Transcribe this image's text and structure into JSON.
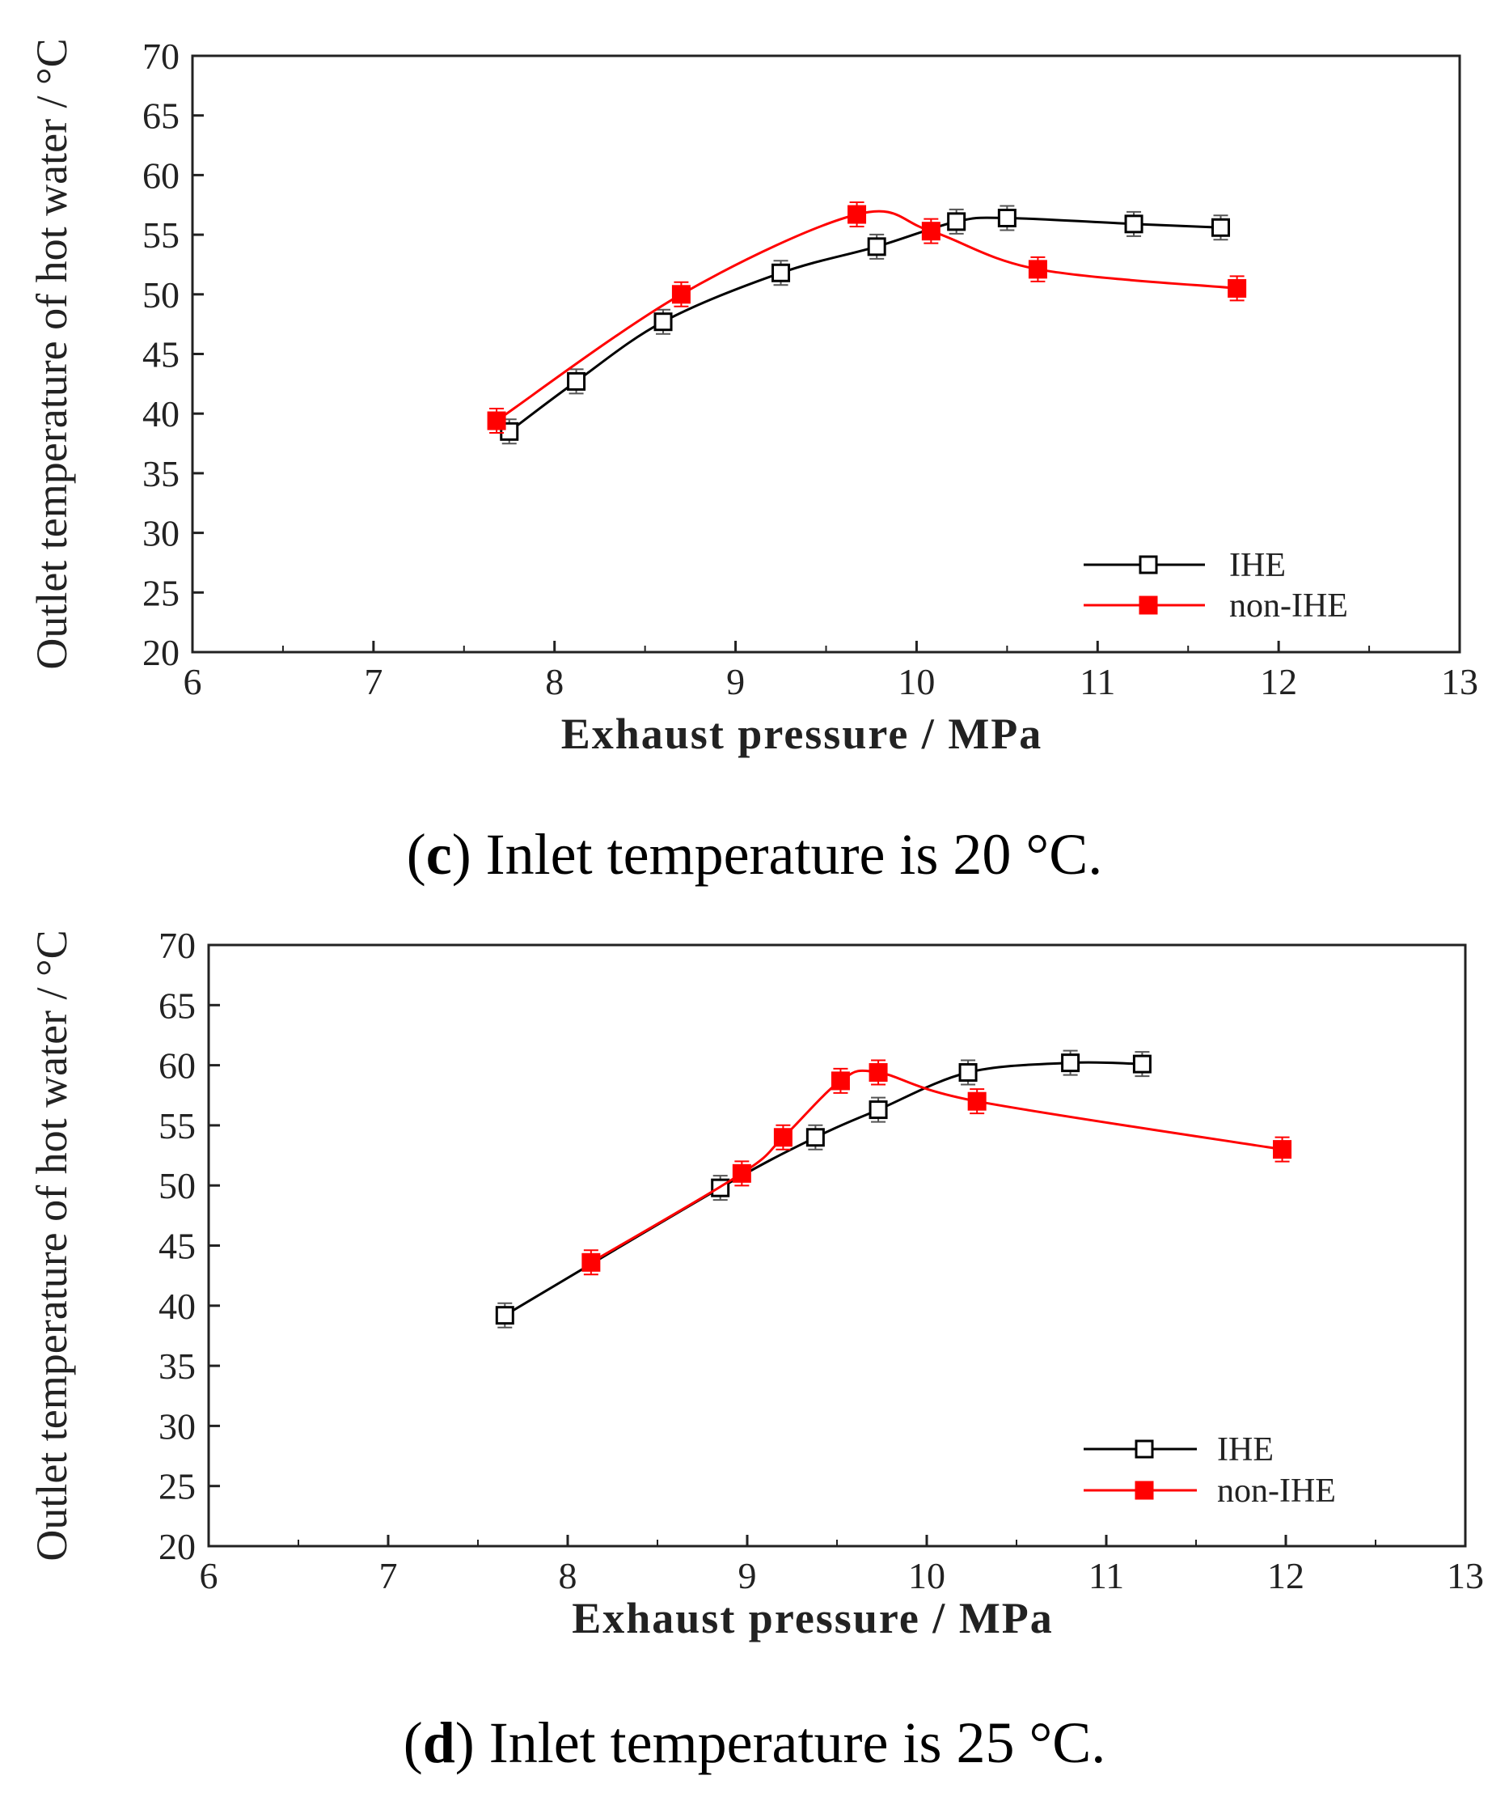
{
  "chart_data": [
    {
      "type": "line",
      "panel": "c",
      "caption": {
        "open": "(",
        "letter": "c",
        "text": ") Inlet temperature is 20 °C."
      },
      "xlabel": "Exhaust pressure / MPa",
      "ylabel": "Outlet temperature of hot water / °C",
      "xlim": [
        6,
        13
      ],
      "ylim": [
        20,
        70
      ],
      "xticks": [
        "6",
        "7",
        "8",
        "9",
        "10",
        "11",
        "12",
        "13"
      ],
      "yticks": [
        "20",
        "25",
        "30",
        "35",
        "40",
        "45",
        "50",
        "55",
        "60",
        "65",
        "70"
      ],
      "legend_position": "bottom-right",
      "series": [
        {
          "name": "IHE",
          "color": "#000000",
          "marker": "open-square",
          "points": [
            [
              7.75,
              38.5
            ],
            [
              8.12,
              42.7
            ],
            [
              8.6,
              47.7
            ],
            [
              9.25,
              51.8
            ],
            [
              9.78,
              54.0
            ],
            [
              10.22,
              56.1
            ],
            [
              10.5,
              56.4
            ],
            [
              11.2,
              55.9
            ],
            [
              11.68,
              55.6
            ]
          ]
        },
        {
          "name": "non-IHE",
          "color": "#ff0000",
          "marker": "filled-square",
          "points": [
            [
              7.68,
              39.4
            ],
            [
              8.7,
              50.0
            ],
            [
              9.67,
              56.7
            ],
            [
              10.08,
              55.3
            ],
            [
              10.67,
              52.1
            ],
            [
              11.77,
              50.5
            ]
          ]
        }
      ]
    },
    {
      "type": "line",
      "panel": "d",
      "caption": {
        "open": "(",
        "letter": "d",
        "text": ") Inlet temperature is 25 °C."
      },
      "xlabel": "Exhaust pressure / MPa",
      "ylabel": "Outlet temperature of hot water / °C",
      "xlim": [
        6,
        13
      ],
      "ylim": [
        20,
        70
      ],
      "xticks": [
        "6",
        "7",
        "8",
        "9",
        "10",
        "11",
        "12",
        "13"
      ],
      "yticks": [
        "20",
        "25",
        "30",
        "35",
        "40",
        "45",
        "50",
        "55",
        "60",
        "65",
        "70"
      ],
      "legend_position": "bottom-right",
      "series": [
        {
          "name": "IHE",
          "color": "#000000",
          "marker": "open-square",
          "points": [
            [
              7.65,
              39.2
            ],
            [
              8.85,
              49.8
            ],
            [
              9.38,
              54.0
            ],
            [
              9.73,
              56.3
            ],
            [
              10.23,
              59.4
            ],
            [
              10.8,
              60.2
            ],
            [
              11.2,
              60.1
            ]
          ]
        },
        {
          "name": "non-IHE",
          "color": "#ff0000",
          "marker": "filled-square",
          "points": [
            [
              8.13,
              43.6
            ],
            [
              8.97,
              51.0
            ],
            [
              9.2,
              54.0
            ],
            [
              9.52,
              58.7
            ],
            [
              9.73,
              59.4
            ],
            [
              10.28,
              57.0
            ],
            [
              11.98,
              53.0
            ]
          ]
        }
      ]
    }
  ]
}
